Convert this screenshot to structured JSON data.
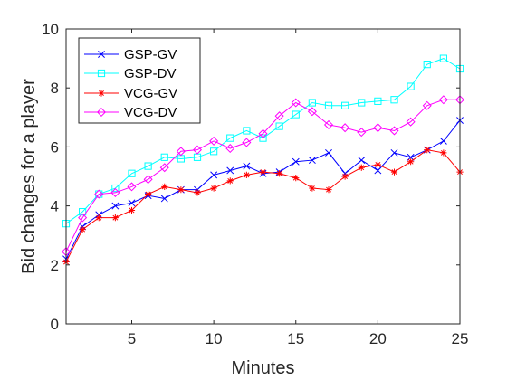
{
  "chart_data": {
    "type": "line",
    "title": "",
    "xlabel": "Minutes",
    "ylabel": "Bid changes for a player",
    "xlim": [
      1,
      25
    ],
    "ylim": [
      0,
      10
    ],
    "xticks": [
      5,
      10,
      15,
      20,
      25
    ],
    "yticks": [
      0,
      2,
      4,
      6,
      8,
      10
    ],
    "xtick_labels": [
      "5",
      "10",
      "15",
      "20",
      "25"
    ],
    "ytick_labels": [
      "0",
      "2",
      "4",
      "6",
      "8",
      "10"
    ],
    "grid": false,
    "legend_position": "top-left",
    "x": [
      1,
      2,
      3,
      4,
      5,
      6,
      7,
      8,
      9,
      10,
      11,
      12,
      13,
      14,
      15,
      16,
      17,
      18,
      19,
      20,
      21,
      22,
      23,
      24,
      25
    ],
    "series": [
      {
        "name": "GSP-GV",
        "color": "#0000ff",
        "marker": "x",
        "values": [
          2.2,
          3.3,
          3.7,
          4.0,
          4.1,
          4.35,
          4.25,
          4.55,
          4.55,
          5.05,
          5.2,
          5.35,
          5.1,
          5.15,
          5.5,
          5.55,
          5.8,
          5.1,
          5.55,
          5.2,
          5.8,
          5.65,
          5.9,
          6.2,
          6.9
        ]
      },
      {
        "name": "GSP-DV",
        "color": "#00ffff",
        "marker": "square",
        "values": [
          3.4,
          3.8,
          4.4,
          4.6,
          5.1,
          5.35,
          5.65,
          5.6,
          5.65,
          5.85,
          6.3,
          6.55,
          6.3,
          6.7,
          7.1,
          7.5,
          7.4,
          7.4,
          7.5,
          7.55,
          7.6,
          8.05,
          8.8,
          9.0,
          8.65
        ]
      },
      {
        "name": "VCG-GV",
        "color": "#ff0000",
        "marker": "asterisk",
        "values": [
          2.1,
          3.2,
          3.6,
          3.6,
          3.85,
          4.4,
          4.65,
          4.55,
          4.45,
          4.6,
          4.85,
          5.05,
          5.15,
          5.1,
          4.95,
          4.6,
          4.55,
          5.0,
          5.3,
          5.4,
          5.15,
          5.5,
          5.9,
          5.8,
          5.15
        ]
      },
      {
        "name": "VCG-DV",
        "color": "#ff00ff",
        "marker": "diamond",
        "values": [
          2.45,
          3.6,
          4.4,
          4.45,
          4.65,
          4.9,
          5.3,
          5.85,
          5.9,
          6.2,
          5.95,
          6.15,
          6.45,
          7.05,
          7.5,
          7.2,
          6.75,
          6.65,
          6.5,
          6.65,
          6.55,
          6.85,
          7.4,
          7.6,
          7.6
        ]
      }
    ]
  }
}
